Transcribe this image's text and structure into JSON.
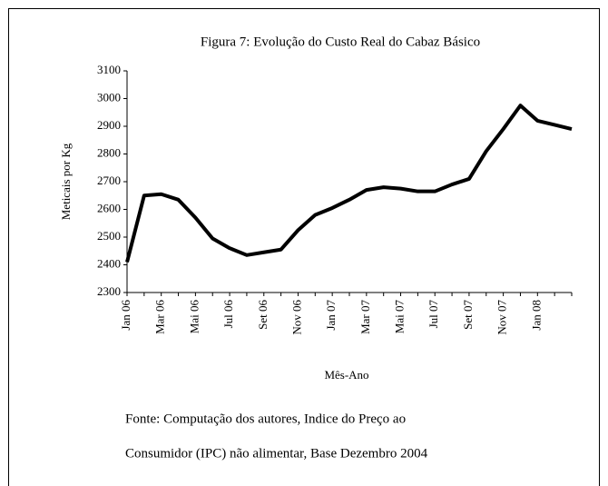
{
  "chart_data": {
    "type": "line",
    "title": "Figura 7: Evolução do Custo Real do Cabaz Básico",
    "y_label": "Meticais por Kg",
    "x_label": "Mês-Ano",
    "source": [
      "Fonte: Computação dos autores, Indice do Preço ao",
      "Consumidor (IPC) não alimentar, Base Dezembro 2004"
    ],
    "categories": [
      "Jan 06",
      null,
      "Mar 06",
      null,
      "Mai 06",
      null,
      "Jul 06",
      null,
      "Set 06",
      null,
      "Nov 06",
      null,
      "Jan 07",
      null,
      "Mar 07",
      null,
      "Mai 07",
      null,
      "Jul 07",
      null,
      "Set 07",
      null,
      "Nov 07",
      null,
      "Jan 08",
      null,
      null
    ],
    "series": [
      {
        "name": "Custo Real do Cabaz Básico",
        "color": "#000000",
        "values": [
          2410,
          2650,
          2655,
          2635,
          2570,
          2495,
          2460,
          2435,
          2445,
          2455,
          2525,
          2580,
          2605,
          2635,
          2670,
          2680,
          2675,
          2665,
          2665,
          2690,
          2710,
          2810,
          2890,
          2975,
          2920,
          2905,
          2890
        ]
      }
    ],
    "ylim": [
      2300,
      3100
    ],
    "yticks": [
      2300,
      2400,
      2500,
      2600,
      2700,
      2800,
      2900,
      3000,
      3100
    ]
  }
}
